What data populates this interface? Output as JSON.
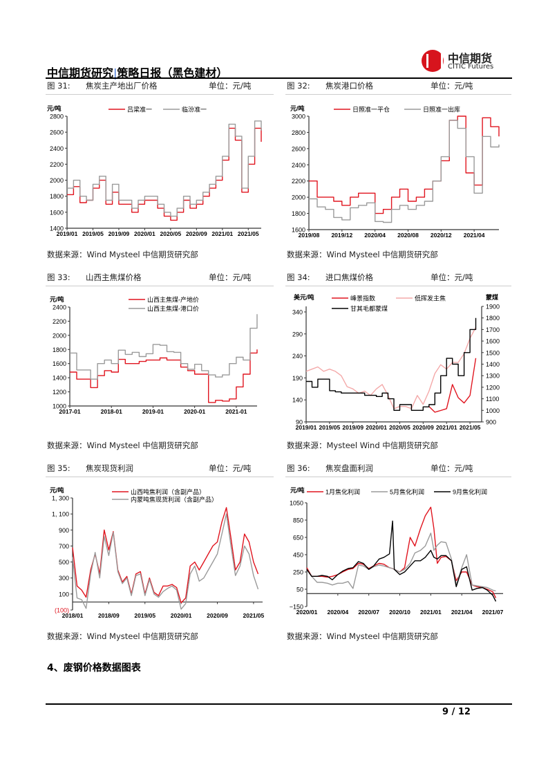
{
  "header": {
    "title_left": "中信期货研究",
    "separator": "|",
    "title_right": "策略日报（黑色建材）",
    "logo_cn": "中信期货",
    "logo_en": "CITIC Futures"
  },
  "colors": {
    "red": "#e0141e",
    "gray": "#9a9a9a",
    "pink": "#f4a8a8",
    "black": "#000000"
  },
  "figures": [
    {
      "num": "图 31:",
      "title": "焦炭主产地出厂价格",
      "unit": "单位：元/吨",
      "source": "数据来源：Wind Mysteel 中信期货研究部"
    },
    {
      "num": "图 32:",
      "title": "焦炭港口价格",
      "unit": "单位：元/吨",
      "source": "数据来源：Wind Mysteel 中信期货研究部"
    },
    {
      "num": "图 33:",
      "title": "山西主焦煤价格",
      "unit": "单位：元/吨",
      "source": "数据来源：Wind Mysteel 中信期货研究部"
    },
    {
      "num": "图 34:",
      "title": "进口焦煤价格",
      "unit": "单位：元/吨",
      "source": "数据来源：Mysteel Wind 中信期货研究部"
    },
    {
      "num": "图 35:",
      "title": "焦炭现货利润",
      "unit": "单位：元/吨",
      "source": "数据来源：Wind Mysteel 中信期货研究部"
    },
    {
      "num": "图 36:",
      "title": "焦炭盘面利润",
      "unit": "单位：元/吨",
      "source": "数据来源：Wind Mysteel 中信期货研究部"
    }
  ],
  "section_title": "4、废钢价格数据图表",
  "page_number": "9 / 12",
  "chart_data": [
    {
      "type": "line",
      "line_shape": "step",
      "ylabel": "元/吨",
      "ylim": [
        1400,
        2800
      ],
      "yticks": [
        "1400",
        "1600",
        "1800",
        "2000",
        "2200",
        "2400",
        "2600",
        "2800"
      ],
      "xlim": [
        "2019-01",
        "2021-07"
      ],
      "xticks": [
        "2019/01",
        "2019/05",
        "2019/09",
        "2020/01",
        "2020/05",
        "2020/09",
        "2021/01",
        "2021/05"
      ],
      "x": [
        "2019-01",
        "2019-02",
        "2019-03",
        "2019-04",
        "2019-05",
        "2019-06",
        "2019-07",
        "2019-08",
        "2019-09",
        "2019-10",
        "2019-11",
        "2019-12",
        "2020-01",
        "2020-02",
        "2020-03",
        "2020-04",
        "2020-05",
        "2020-06",
        "2020-07",
        "2020-08",
        "2020-09",
        "2020-10",
        "2020-11",
        "2020-12",
        "2021-01",
        "2021-02",
        "2021-03",
        "2021-04",
        "2021-05",
        "2021-06",
        "2021-07"
      ],
      "series": [
        {
          "name": "吕梁准一",
          "color": "#e0141e",
          "values": [
            1820,
            1920,
            1720,
            1750,
            1900,
            2000,
            1700,
            1850,
            1700,
            1700,
            1600,
            1700,
            1750,
            1750,
            1650,
            1550,
            1500,
            1600,
            1750,
            1650,
            1700,
            1800,
            1900,
            2000,
            2250,
            2650,
            2500,
            1850,
            2200,
            2650,
            2480
          ]
        },
        {
          "name": "临汾准一",
          "color": "#9a9a9a",
          "values": [
            1900,
            2000,
            1800,
            1750,
            1950,
            2050,
            1750,
            1950,
            1750,
            1750,
            1650,
            1750,
            1800,
            1800,
            1700,
            1600,
            1550,
            1650,
            1800,
            1700,
            1750,
            1850,
            1950,
            2050,
            2300,
            2700,
            2550,
            1900,
            2300,
            2740,
            2620
          ]
        }
      ]
    },
    {
      "type": "line",
      "line_shape": "step",
      "ylabel": "元/吨",
      "ylim": [
        1600,
        3000
      ],
      "yticks": [
        "1600",
        "1800",
        "2000",
        "2200",
        "2400",
        "2600",
        "2800",
        "3000"
      ],
      "xlim": [
        "2019-08",
        "2021-07"
      ],
      "xticks": [
        "2019/08",
        "2019/12",
        "2020/04",
        "2020/08",
        "2020/12",
        "2021/04"
      ],
      "x": [
        "2019-08",
        "2019-09",
        "2019-10",
        "2019-11",
        "2019-12",
        "2020-01",
        "2020-02",
        "2020-03",
        "2020-04",
        "2020-05",
        "2020-06",
        "2020-07",
        "2020-08",
        "2020-09",
        "2020-10",
        "2020-11",
        "2020-12",
        "2021-01",
        "2021-02",
        "2021-03",
        "2021-04",
        "2021-05",
        "2021-06",
        "2021-07"
      ],
      "series": [
        {
          "name": "日照准一平仓",
          "color": "#e0141e",
          "values": [
            2200,
            2000,
            2000,
            1950,
            1900,
            2000,
            2050,
            2050,
            1800,
            1850,
            2000,
            2100,
            1950,
            2000,
            2100,
            2200,
            2450,
            2950,
            3000,
            2300,
            2150,
            2980,
            2870,
            2750
          ]
        },
        {
          "name": "日照准一出库",
          "color": "#9a9a9a",
          "values": [
            1980,
            1880,
            1850,
            1750,
            1720,
            1870,
            1900,
            1930,
            1700,
            1690,
            1850,
            1900,
            1850,
            1900,
            1950,
            2200,
            2500,
            2950,
            2850,
            2500,
            2050,
            2750,
            2620,
            2650
          ]
        }
      ]
    },
    {
      "type": "line",
      "line_shape": "step",
      "ylabel": "元/吨",
      "ylim": [
        1000,
        2400
      ],
      "yticks": [
        "1000",
        "1200",
        "1400",
        "1600",
        "1800",
        "2000",
        "2200",
        "2400"
      ],
      "xlim": [
        "2017-01",
        "2021-07"
      ],
      "xticks": [
        "2017-01",
        "2018-01",
        "2019-01",
        "2020-01",
        "2021-01"
      ],
      "x": [
        "2017-01",
        "2017-03",
        "2017-05",
        "2017-07",
        "2017-09",
        "2017-11",
        "2018-01",
        "2018-03",
        "2018-05",
        "2018-07",
        "2018-09",
        "2018-11",
        "2019-01",
        "2019-03",
        "2019-05",
        "2019-07",
        "2019-09",
        "2019-11",
        "2020-01",
        "2020-03",
        "2020-05",
        "2020-07",
        "2020-09",
        "2020-11",
        "2021-01",
        "2021-03",
        "2021-05",
        "2021-07"
      ],
      "series": [
        {
          "name": "山西主焦煤-产地价",
          "color": "#e0141e",
          "values": [
            1480,
            1380,
            1380,
            1260,
            1430,
            1500,
            1480,
            1660,
            1600,
            1600,
            1630,
            1650,
            1650,
            1680,
            1650,
            1650,
            1550,
            1500,
            1450,
            1450,
            1050,
            1080,
            1070,
            1100,
            1270,
            1450,
            1750,
            1800
          ]
        },
        {
          "name": "山西主焦煤-港口价",
          "color": "#9a9a9a",
          "values": [
            1750,
            1510,
            1510,
            1380,
            1600,
            1650,
            1600,
            1790,
            1730,
            1760,
            1700,
            1740,
            1870,
            1860,
            1770,
            1760,
            1600,
            1520,
            1590,
            1500,
            1440,
            1410,
            1440,
            1600,
            1690,
            1650,
            2100,
            2300
          ]
        }
      ]
    },
    {
      "type": "line",
      "ylabel": "美元/吨",
      "ylabel_right": "蒙煤",
      "ylim": [
        90,
        340
      ],
      "yticks": [
        "90",
        "140",
        "190",
        "240",
        "290",
        "340"
      ],
      "ylim_right": [
        900,
        1900
      ],
      "yticks_right": [
        "900",
        "1000",
        "1100",
        "1200",
        "1300",
        "1400",
        "1500",
        "1600",
        "1700",
        "1800",
        "1900"
      ],
      "xlim": [
        "2019-01",
        "2021-07"
      ],
      "xticks": [
        "2019/01",
        "2019/05",
        "2019/09",
        "2020/01",
        "2020/05",
        "2020/09",
        "2021/01",
        "2021/05"
      ],
      "x": [
        "2019-01",
        "2019-02",
        "2019-03",
        "2019-04",
        "2019-05",
        "2019-06",
        "2019-07",
        "2019-08",
        "2019-09",
        "2019-10",
        "2019-11",
        "2019-12",
        "2020-01",
        "2020-02",
        "2020-03",
        "2020-04",
        "2020-05",
        "2020-06",
        "2020-07",
        "2020-08",
        "2020-09",
        "2020-10",
        "2020-11",
        "2020-12",
        "2021-01",
        "2021-02",
        "2021-03",
        "2021-04",
        "2021-05",
        "2021-06"
      ],
      "series": [
        {
          "name": "峰景指数",
          "color": "#e0141e",
          "axis": "left",
          "x": [
            "2020-10",
            "2020-11",
            "2020-12",
            "2021-01",
            "2021-02",
            "2021-03",
            "2021-04",
            "2021-05",
            "2021-06"
          ],
          "values": [
            125,
            112,
            116,
            120,
            175,
            145,
            133,
            150,
            235
          ]
        },
        {
          "name": "低挥发主焦",
          "color": "#f4a8a8",
          "axis": "left",
          "values": [
            205,
            210,
            215,
            205,
            210,
            205,
            195,
            170,
            165,
            155,
            160,
            150,
            165,
            175,
            150,
            120,
            125,
            125,
            120,
            150,
            130,
            160,
            200,
            220,
            210,
            225,
            225,
            245,
            280,
            305
          ]
        },
        {
          "name": "甘其毛都蒙煤",
          "color": "#000000",
          "axis": "right",
          "step": true,
          "values": [
            1250,
            1200,
            1270,
            1270,
            1170,
            1160,
            1150,
            1150,
            1150,
            1150,
            1130,
            1130,
            1120,
            1150,
            1100,
            1000,
            1050,
            1050,
            1000,
            1000,
            1030,
            1050,
            1150,
            1300,
            1450,
            1400,
            1300,
            1500,
            1700,
            1800
          ]
        }
      ]
    },
    {
      "type": "line",
      "ylabel": "元/吨",
      "baseline": 0,
      "ylim": [
        -100,
        1300
      ],
      "yticks": [
        "(100)",
        "100",
        "300",
        "500",
        "700",
        "900",
        "1, 100",
        "1, 300"
      ],
      "ytick_values": [
        -100,
        100,
        300,
        500,
        700,
        900,
        1100,
        1300
      ],
      "xlim": [
        "2018-01",
        "2021-07"
      ],
      "xticks": [
        "2018/01",
        "2018/09",
        "2019/05",
        "2020/01",
        "2020/09",
        "2021/05"
      ],
      "x": [
        "2018-01",
        "2018-02",
        "2018-03",
        "2018-04",
        "2018-05",
        "2018-06",
        "2018-07",
        "2018-08",
        "2018-09",
        "2018-10",
        "2018-11",
        "2018-12",
        "2019-01",
        "2019-02",
        "2019-03",
        "2019-04",
        "2019-05",
        "2019-06",
        "2019-07",
        "2019-08",
        "2019-09",
        "2019-10",
        "2019-11",
        "2019-12",
        "2020-01",
        "2020-02",
        "2020-03",
        "2020-04",
        "2020-05",
        "2020-06",
        "2020-07",
        "2020-08",
        "2020-09",
        "2020-10",
        "2020-11",
        "2020-12",
        "2021-01",
        "2021-02",
        "2021-03",
        "2021-04",
        "2021-05",
        "2021-06"
      ],
      "series": [
        {
          "name": "山西吨焦利润（含副产品）",
          "color": "#e0141e",
          "values": [
            680,
            200,
            150,
            60,
            400,
            600,
            350,
            900,
            650,
            880,
            400,
            250,
            320,
            100,
            350,
            380,
            100,
            300,
            120,
            80,
            200,
            200,
            220,
            180,
            -10,
            50,
            450,
            500,
            400,
            500,
            600,
            700,
            750,
            1000,
            1180,
            800,
            400,
            500,
            850,
            750,
            500,
            350
          ]
        },
        {
          "name": "内蒙吨焦现货利润（含副产品）",
          "color": "#9a9a9a",
          "values": [
            560,
            50,
            30,
            -80,
            350,
            620,
            300,
            820,
            580,
            870,
            380,
            230,
            300,
            80,
            330,
            350,
            80,
            280,
            100,
            60,
            130,
            170,
            200,
            150,
            -90,
            -20,
            350,
            450,
            260,
            300,
            400,
            500,
            600,
            850,
            1100,
            700,
            330,
            450,
            700,
            600,
            330,
            160
          ]
        }
      ]
    },
    {
      "type": "line",
      "ylabel": "元/吨",
      "baseline": 0,
      "ylim": [
        -150,
        1050
      ],
      "yticks": [
        "−150",
        "50",
        "250",
        "450",
        "650",
        "850",
        "1050"
      ],
      "ytick_values": [
        -150,
        50,
        250,
        450,
        650,
        850,
        1050
      ],
      "xlim": [
        "2020-01-01",
        "2021-08-01"
      ],
      "xticks": [
        "2020/01",
        "2020/04",
        "2020/07",
        "2020/10",
        "2021/01",
        "2021/04",
        "2021/07"
      ],
      "x": [
        "2020-01-01",
        "2020-01-15",
        "2020-02-01",
        "2020-02-15",
        "2020-03-01",
        "2020-03-15",
        "2020-04-01",
        "2020-04-15",
        "2020-05-01",
        "2020-05-15",
        "2020-06-01",
        "2020-06-15",
        "2020-07-01",
        "2020-07-15",
        "2020-08-01",
        "2020-08-15",
        "2020-09-01",
        "2020-09-10",
        "2020-09-15",
        "2020-10-01",
        "2020-10-15",
        "2020-11-01",
        "2020-11-15",
        "2020-12-01",
        "2020-12-15",
        "2021-01-01",
        "2021-01-10",
        "2021-01-20",
        "2021-02-01",
        "2021-02-15",
        "2021-03-01",
        "2021-03-15",
        "2021-04-01",
        "2021-04-15",
        "2021-05-01",
        "2021-05-15",
        "2021-06-01",
        "2021-06-15",
        "2021-07-01",
        "2021-07-10"
      ],
      "series": [
        {
          "name": "1月焦化利润",
          "color": "#e0141e",
          "values": [
            300,
            200,
            200,
            200,
            190,
            200,
            220,
            250,
            280,
            290,
            350,
            340,
            290,
            320,
            350,
            340,
            300,
            290,
            280,
            250,
            300,
            650,
            550,
            750,
            900,
            1000,
            750,
            350,
            420,
            430,
            380,
            150,
            250,
            250,
            100,
            80,
            70,
            50,
            20,
            -50
          ]
        },
        {
          "name": "5月焦化利润",
          "color": "#9a9a9a",
          "values": [
            280,
            200,
            130,
            130,
            120,
            100,
            120,
            120,
            140,
            60,
            330,
            320,
            280,
            310,
            330,
            320,
            300,
            290,
            280,
            250,
            280,
            350,
            470,
            500,
            550,
            700,
            500,
            560,
            600,
            590,
            400,
            100,
            300,
            450,
            100,
            90,
            80,
            70,
            40,
            30
          ]
        },
        {
          "name": "9月焦化利润",
          "color": "#000000",
          "values": [
            280,
            200,
            200,
            210,
            200,
            160,
            220,
            260,
            290,
            300,
            370,
            350,
            280,
            320,
            400,
            420,
            460,
            840,
            280,
            220,
            250,
            320,
            380,
            380,
            420,
            500,
            420,
            400,
            440,
            440,
            380,
            80,
            280,
            310,
            40,
            60,
            70,
            40,
            -20,
            -90
          ]
        }
      ]
    }
  ]
}
